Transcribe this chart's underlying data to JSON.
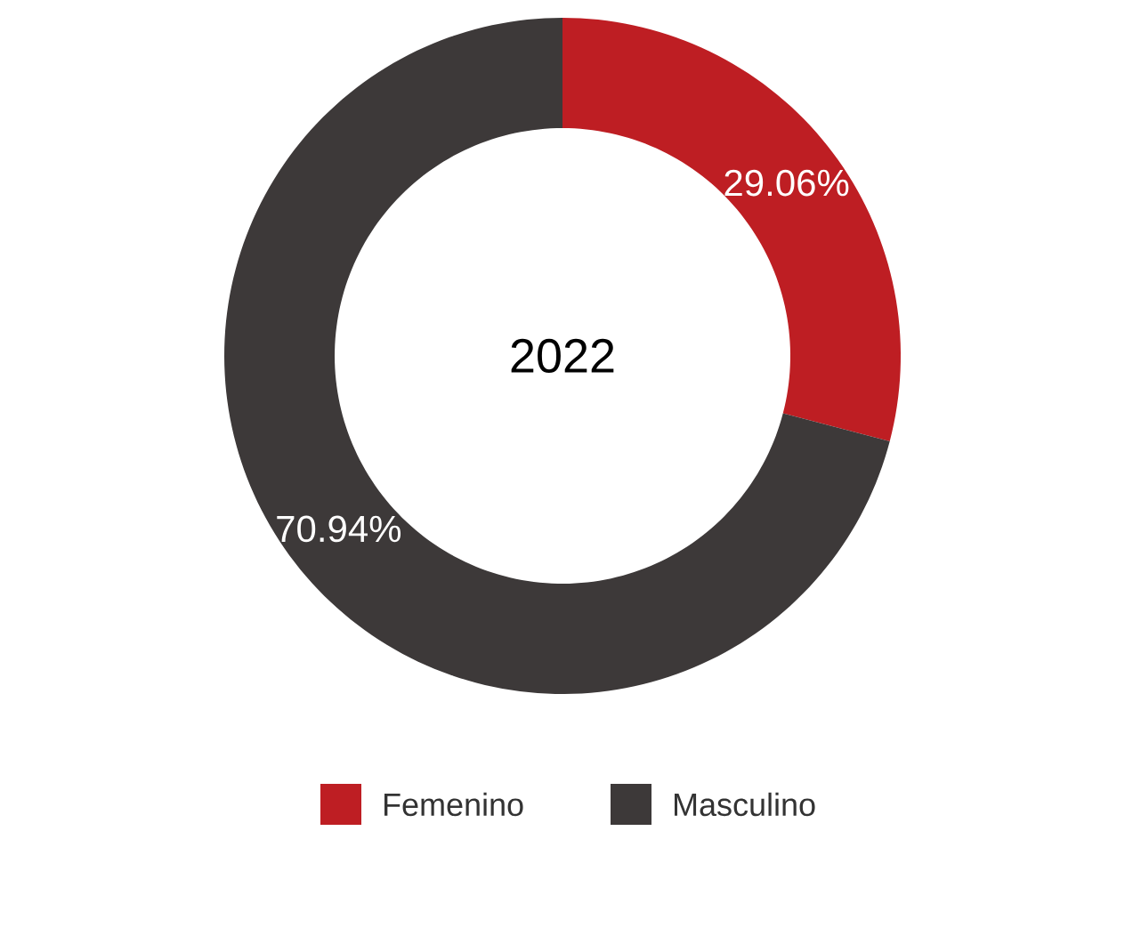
{
  "chart_data": {
    "type": "donut",
    "title": "2022",
    "categories": [
      "Femenino",
      "Masculino"
    ],
    "values": [
      29.06,
      70.94
    ],
    "colors": [
      "#be1e23",
      "#3d3939"
    ],
    "value_labels": [
      "29.06%",
      "70.94%"
    ],
    "legend": "bottom"
  }
}
